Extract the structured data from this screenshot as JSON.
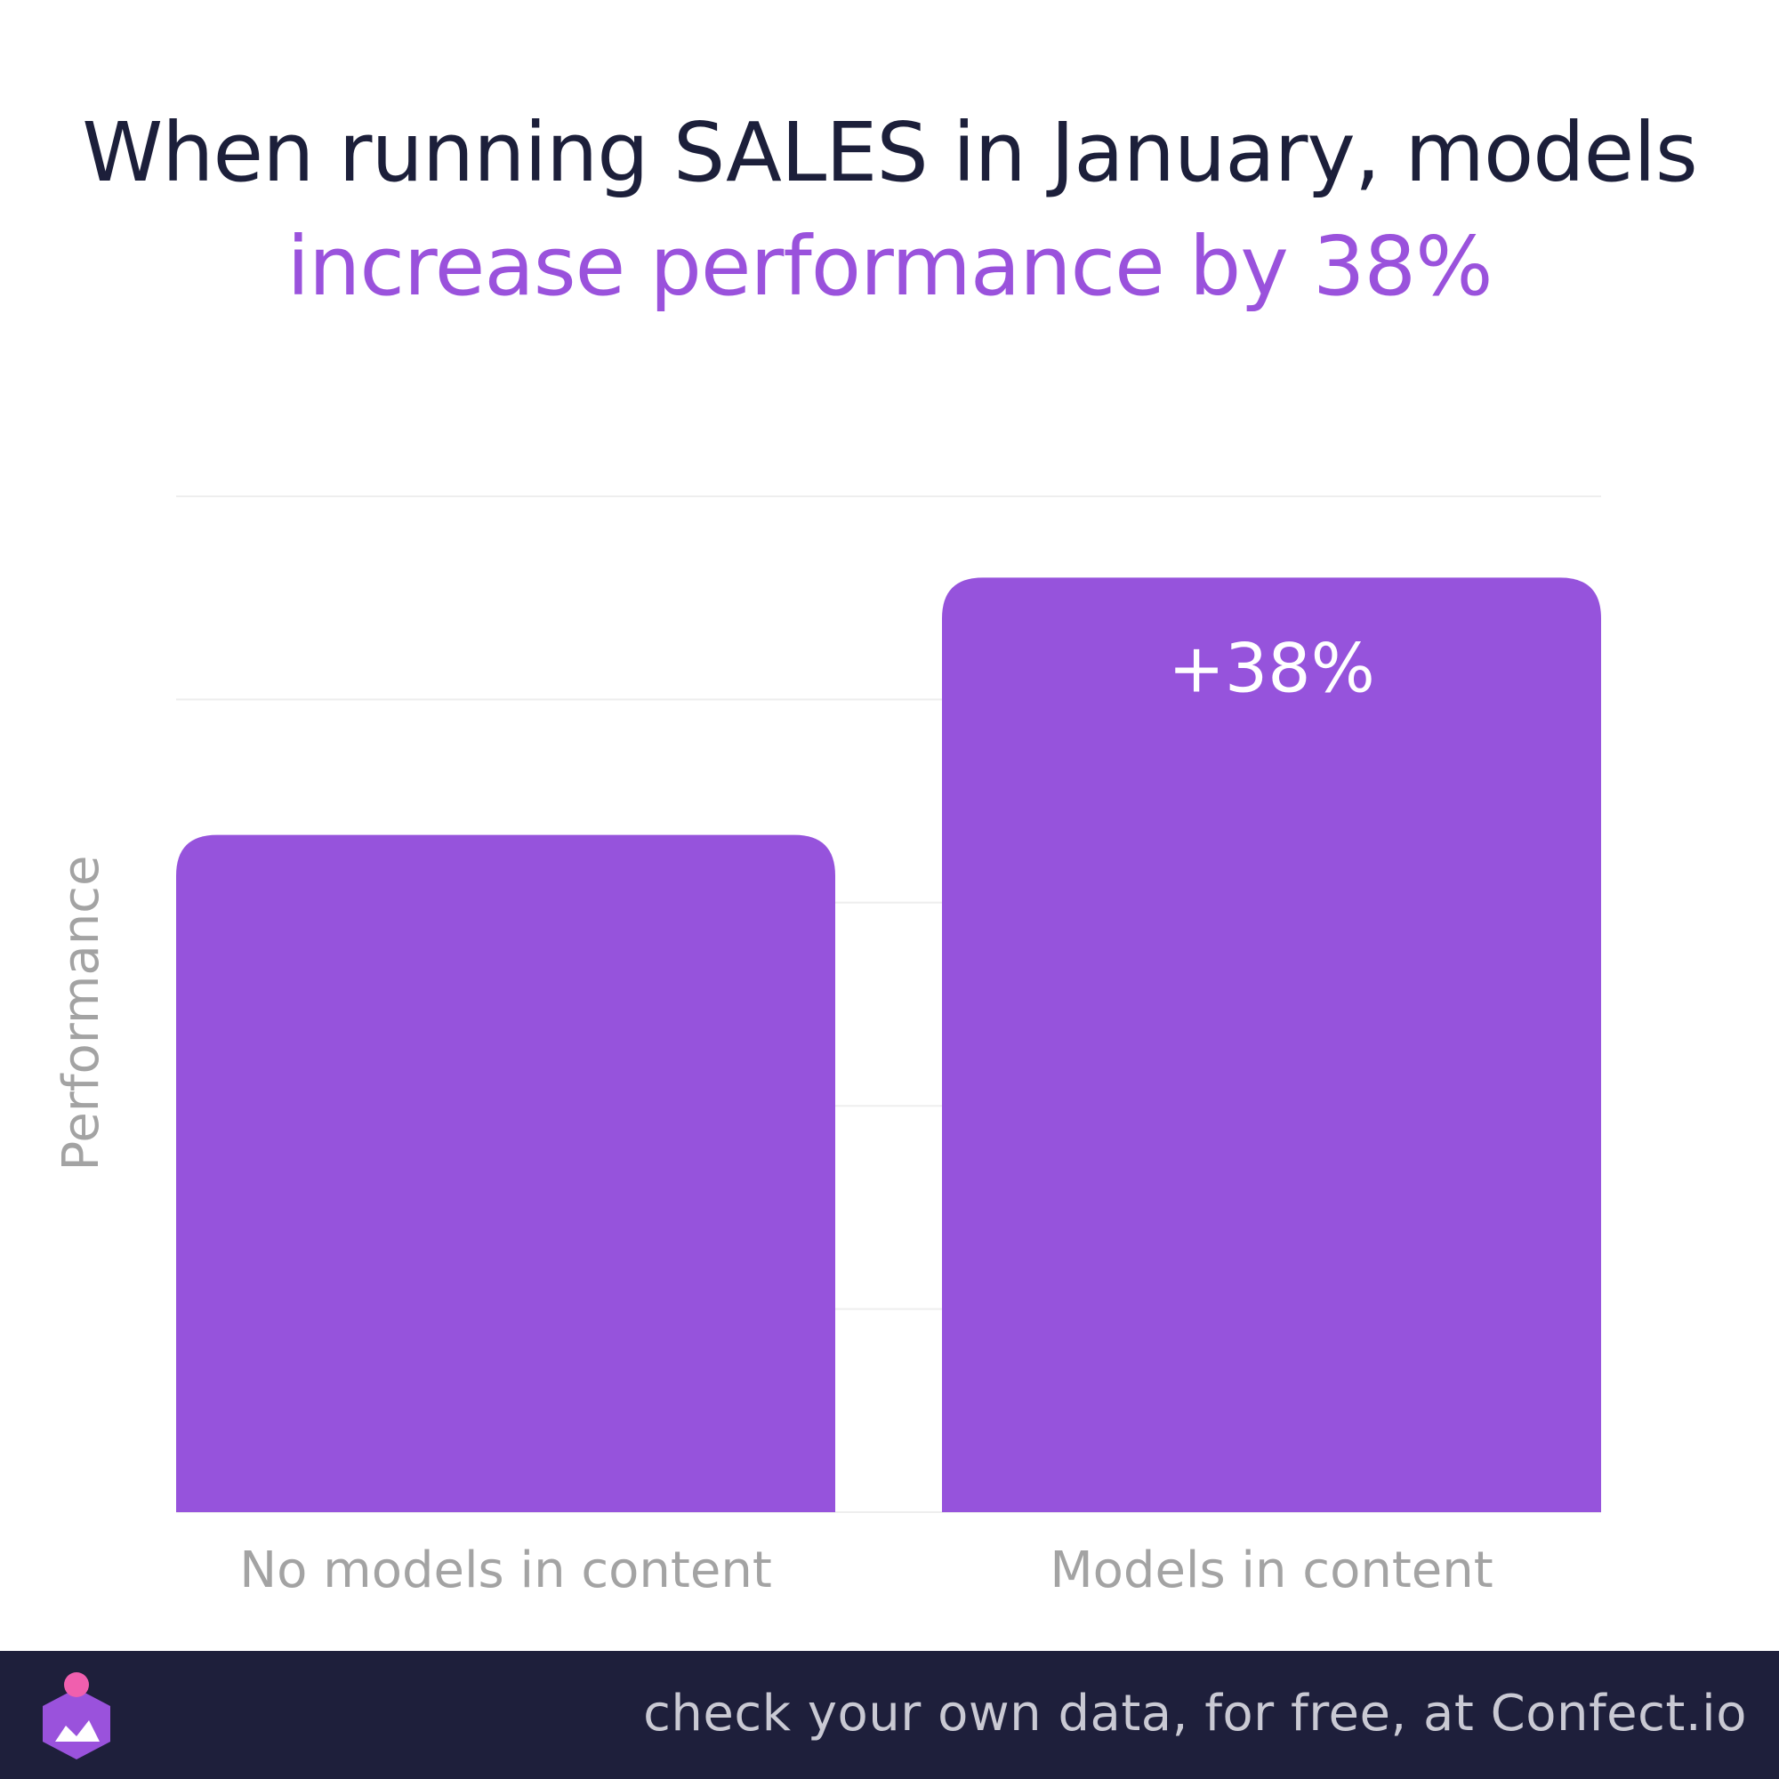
{
  "title": {
    "line1": "When running SALES in January, models",
    "line2": "increase performance by 38%"
  },
  "colors": {
    "bar": "#9653dc",
    "title_dark": "#1c1f3a",
    "title_accent": "#9a52dc",
    "axis_text": "#a3a3a3",
    "grid": "#eeeeee",
    "footer_bg": "#1e1f3b"
  },
  "chart_data": {
    "type": "bar",
    "categories": [
      "No models in content",
      "Models in content"
    ],
    "values": [
      100,
      138
    ],
    "ylabel": "Performance",
    "ylim": [
      0,
      150
    ],
    "grid": true,
    "data_labels": [
      "",
      "+38%"
    ]
  },
  "footer": {
    "text": "check your own data, for free, at Confect.io",
    "logo_icon": "confect-logo-icon"
  }
}
